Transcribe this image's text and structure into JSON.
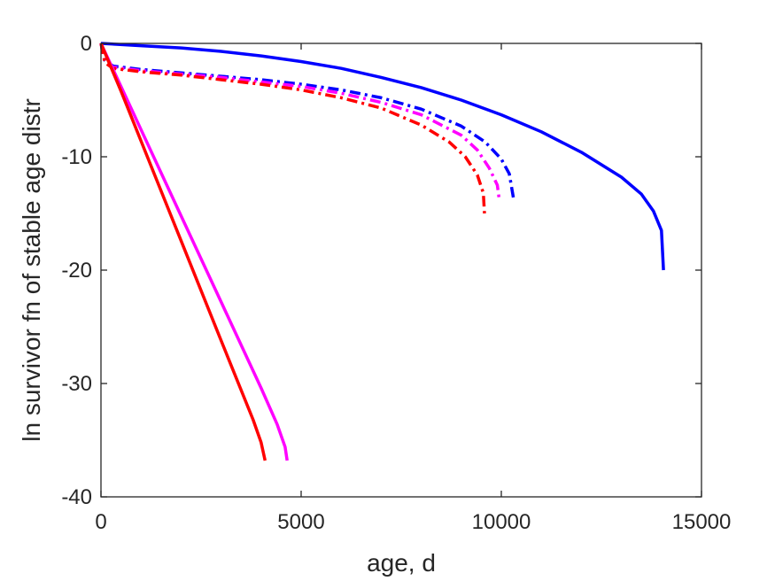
{
  "chart_data": {
    "type": "line",
    "xlabel": "age, d",
    "ylabel": "ln survivor fn of stable age distr",
    "xlim": [
      0,
      15000
    ],
    "ylim": [
      -40,
      0
    ],
    "xticks": [
      0,
      5000,
      10000,
      15000
    ],
    "yticks": [
      0,
      -10,
      -20,
      -30,
      -40
    ],
    "xtick_labels": [
      "0",
      "5000",
      "10000",
      "15000"
    ],
    "ytick_labels": [
      "0",
      "-10",
      "-20",
      "-30",
      "-40"
    ],
    "grid": false,
    "legend": "none",
    "series": [
      {
        "color": "#0000ff",
        "style": "solid",
        "x": [
          0,
          1000,
          2000,
          3000,
          4000,
          5000,
          6000,
          7000,
          8000,
          9000,
          10000,
          11000,
          12000,
          13000,
          13500,
          13800,
          14000,
          14050
        ],
        "y": [
          0,
          -0.2,
          -0.4,
          -0.7,
          -1.1,
          -1.6,
          -2.2,
          -3.0,
          -3.9,
          -5.0,
          -6.3,
          -7.8,
          -9.6,
          -11.8,
          -13.3,
          -14.8,
          -16.5,
          -20
        ]
      },
      {
        "color": "#0000ff",
        "style": "dashdot",
        "x": [
          0,
          100,
          300,
          1000,
          2000,
          3000,
          4000,
          5000,
          6000,
          7000,
          8000,
          9000,
          9600,
          10000,
          10200,
          10300
        ],
        "y": [
          0,
          -1.5,
          -2.0,
          -2.3,
          -2.6,
          -2.9,
          -3.2,
          -3.6,
          -4.1,
          -4.8,
          -5.8,
          -7.3,
          -8.7,
          -10.2,
          -11.5,
          -13.6
        ]
      },
      {
        "color": "#ff00ff",
        "style": "dashdot",
        "x": [
          0,
          100,
          300,
          1000,
          2000,
          3000,
          4000,
          5000,
          6000,
          7000,
          8000,
          9000,
          9400,
          9700,
          9900,
          9950
        ],
        "y": [
          0,
          -1.6,
          -2.1,
          -2.4,
          -2.7,
          -3.0,
          -3.4,
          -3.8,
          -4.4,
          -5.2,
          -6.3,
          -8.1,
          -9.4,
          -11.0,
          -12.5,
          -13.8
        ]
      },
      {
        "color": "#ff0000",
        "style": "dashdot",
        "x": [
          0,
          100,
          300,
          1000,
          2000,
          3000,
          4000,
          5000,
          6000,
          7000,
          8000,
          8700,
          9100,
          9400,
          9550,
          9580
        ],
        "y": [
          0,
          -1.7,
          -2.2,
          -2.5,
          -2.8,
          -3.2,
          -3.6,
          -4.1,
          -4.8,
          -5.7,
          -7.2,
          -8.7,
          -10.0,
          -11.6,
          -13.2,
          -15.0
        ]
      },
      {
        "color": "#ff00ff",
        "style": "solid",
        "x": [
          0,
          500,
          1000,
          2000,
          3000,
          4000,
          4400,
          4600,
          4650
        ],
        "y": [
          0,
          -3.8,
          -7.6,
          -15.2,
          -22.8,
          -30.4,
          -33.6,
          -35.6,
          -36.8
        ]
      },
      {
        "color": "#ff0000",
        "style": "solid",
        "x": [
          0,
          500,
          1000,
          2000,
          3000,
          3800,
          4000,
          4100
        ],
        "y": [
          0,
          -4.2,
          -8.6,
          -17.4,
          -26.2,
          -33.2,
          -35.2,
          -36.8
        ]
      }
    ]
  }
}
